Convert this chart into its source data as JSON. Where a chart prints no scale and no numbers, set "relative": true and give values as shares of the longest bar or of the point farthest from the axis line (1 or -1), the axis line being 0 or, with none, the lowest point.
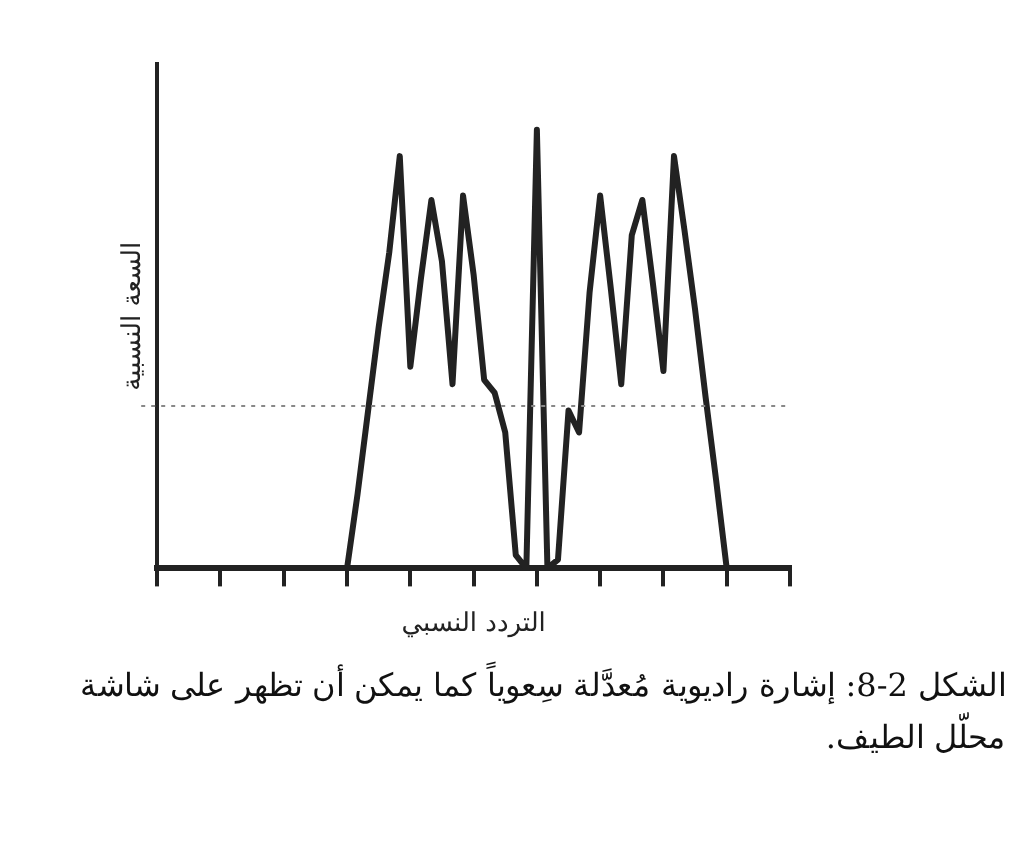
{
  "chart_data": {
    "type": "line",
    "relative": true,
    "xlabel": "التردد النسبي",
    "ylabel": "السعة النسبية",
    "categories": [
      null,
      null,
      null,
      null,
      null,
      null,
      null,
      null,
      null,
      null,
      null,
      null,
      null,
      null,
      null,
      null,
      null,
      null,
      null,
      null,
      null,
      null,
      null,
      null,
      null,
      null,
      null,
      null,
      null,
      null,
      null,
      null,
      null,
      null,
      null,
      null,
      null,
      null,
      null,
      null,
      null,
      null,
      null,
      null,
      null,
      null,
      null,
      null,
      null,
      null,
      null,
      null,
      null,
      null,
      null,
      null,
      null,
      null,
      null,
      null,
      null
    ],
    "values": [
      0,
      0,
      0,
      0,
      0,
      0,
      0,
      0,
      0,
      0,
      0,
      0,
      0,
      0,
      0,
      0,
      0,
      0,
      0,
      0.17,
      0.36,
      0.55,
      0.72,
      0.94,
      0.46,
      0.66,
      0.84,
      0.7,
      0.42,
      0.85,
      0.67,
      0.43,
      0.4,
      0.31,
      0.03,
      0,
      1,
      0,
      0.02,
      0.36,
      0.31,
      0.63,
      0.85,
      0.64,
      0.42,
      0.76,
      0.84,
      0.65,
      0.45,
      0.94,
      0.77,
      0.59,
      0.39,
      0.2,
      0,
      0,
      0,
      0,
      0,
      0,
      0
    ],
    "color": "#222222",
    "marker": "none",
    "line_style": "solid",
    "grid": false,
    "legend": false,
    "ref_lines": [
      {
        "axis": "y",
        "value": 0.37,
        "color": "#888888",
        "line_style": "dotted"
      }
    ],
    "annotations": [
      "الشكل 2-8: إشارة راديوية مُعدَّلة سِعوياً كما يمكن أن تظهر على شاشة محلّل الطيف."
    ]
  }
}
